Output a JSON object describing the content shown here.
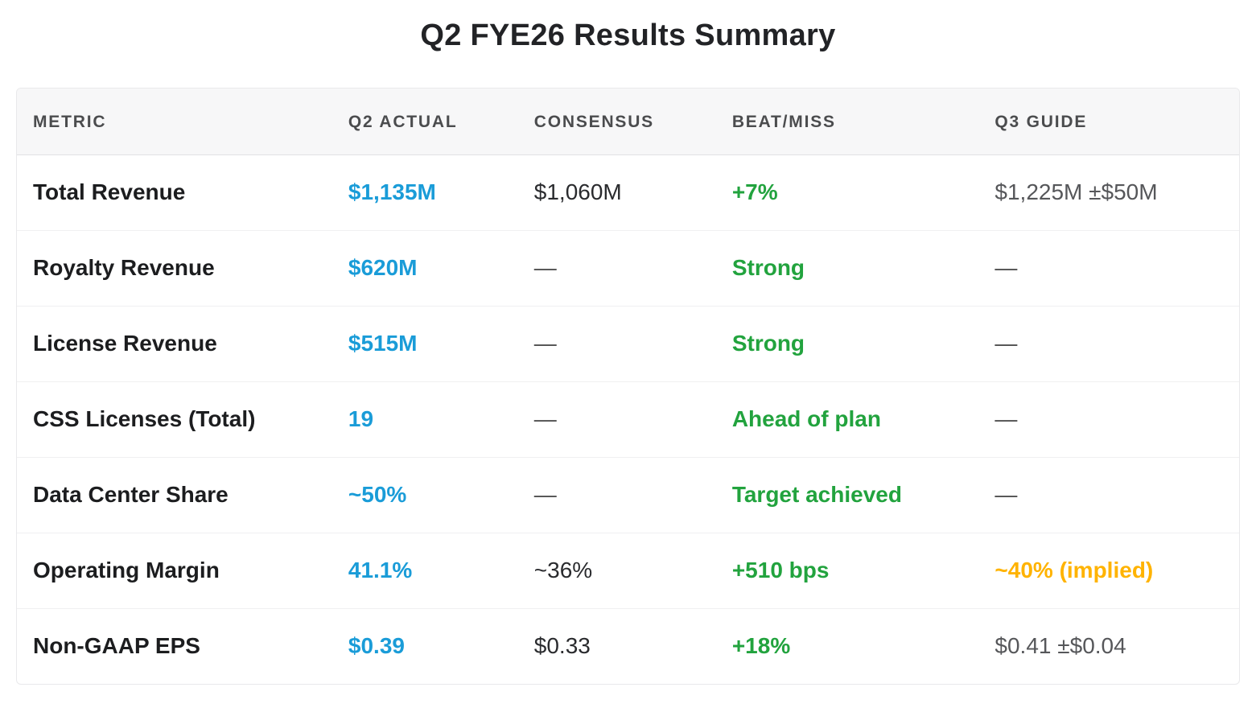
{
  "page": {
    "title": "Q2 FYE26 Results Summary"
  },
  "colors": {
    "accent_blue": "#1a9cd8",
    "positive_green": "#22a33e",
    "caution_amber": "#ffb300",
    "header_bg": "#f7f7f8",
    "row_divider": "#f0f0f1"
  },
  "chart_data": {
    "type": "table",
    "title": "Q2 FYE26 Results Summary",
    "columns": [
      "METRIC",
      "Q2 ACTUAL",
      "CONSENSUS",
      "BEAT/MISS",
      "Q3 GUIDE"
    ],
    "rows": [
      {
        "cells": [
          {
            "text": "Total Revenue",
            "style": "metric"
          },
          {
            "text": "$1,135M",
            "style": "blue"
          },
          {
            "text": "$1,060M",
            "style": "dark"
          },
          {
            "text": "+7%",
            "style": "green"
          },
          {
            "text": "$1,225M ±$50M",
            "style": "gray"
          }
        ]
      },
      {
        "cells": [
          {
            "text": "Royalty Revenue",
            "style": "metric"
          },
          {
            "text": "$620M",
            "style": "blue"
          },
          {
            "text": "—",
            "style": "dash"
          },
          {
            "text": "Strong",
            "style": "green"
          },
          {
            "text": "—",
            "style": "dash"
          }
        ]
      },
      {
        "cells": [
          {
            "text": "License Revenue",
            "style": "metric"
          },
          {
            "text": "$515M",
            "style": "blue"
          },
          {
            "text": "—",
            "style": "dash"
          },
          {
            "text": "Strong",
            "style": "green"
          },
          {
            "text": "—",
            "style": "dash"
          }
        ]
      },
      {
        "cells": [
          {
            "text": "CSS Licenses (Total)",
            "style": "metric"
          },
          {
            "text": "19",
            "style": "blue"
          },
          {
            "text": "—",
            "style": "dash"
          },
          {
            "text": "Ahead of plan",
            "style": "green"
          },
          {
            "text": "—",
            "style": "dash"
          }
        ]
      },
      {
        "cells": [
          {
            "text": "Data Center Share",
            "style": "metric"
          },
          {
            "text": "~50%",
            "style": "blue"
          },
          {
            "text": "—",
            "style": "dash"
          },
          {
            "text": "Target achieved",
            "style": "green"
          },
          {
            "text": "—",
            "style": "dash"
          }
        ]
      },
      {
        "cells": [
          {
            "text": "Operating Margin",
            "style": "metric"
          },
          {
            "text": "41.1%",
            "style": "blue"
          },
          {
            "text": "~36%",
            "style": "dark"
          },
          {
            "text": "+510 bps",
            "style": "green"
          },
          {
            "text": "~40% (implied)",
            "style": "amber"
          }
        ]
      },
      {
        "cells": [
          {
            "text": "Non-GAAP EPS",
            "style": "metric"
          },
          {
            "text": "$0.39",
            "style": "blue"
          },
          {
            "text": "$0.33",
            "style": "dark"
          },
          {
            "text": "+18%",
            "style": "green"
          },
          {
            "text": "$0.41 ±$0.04",
            "style": "gray"
          }
        ]
      }
    ]
  }
}
